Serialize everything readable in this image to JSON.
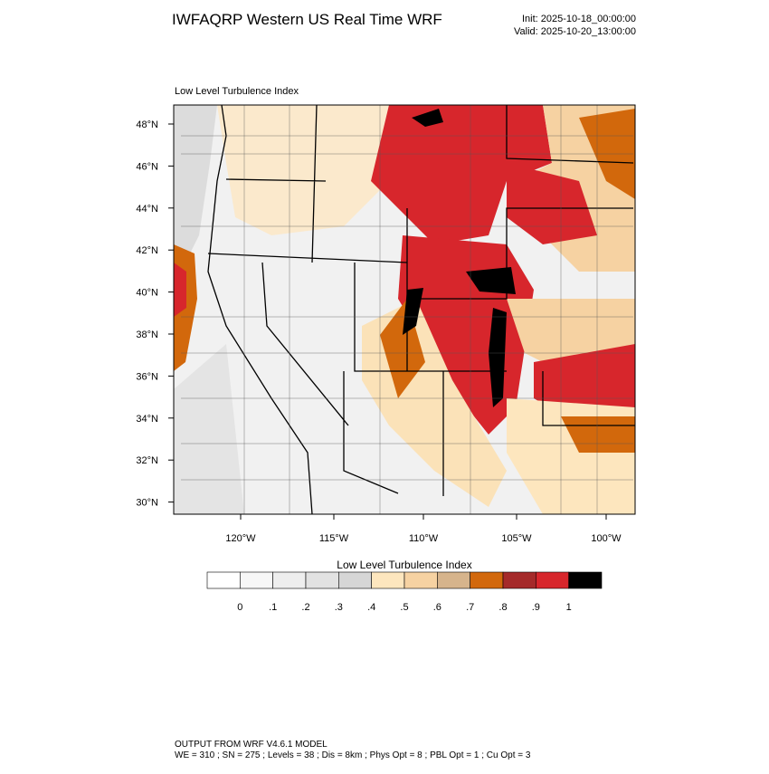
{
  "header": {
    "title": "IWFAQRP Western US Real Time WRF",
    "init": "Init: 2025-10-18_00:00:00",
    "valid": "Valid: 2025-10-20_13:00:00"
  },
  "map": {
    "subtitle": "Low Level Turbulence Index",
    "lat_labels": [
      "48°N",
      "46°N",
      "44°N",
      "42°N",
      "40°N",
      "38°N",
      "36°N",
      "34°N",
      "32°N",
      "30°N"
    ],
    "lon_labels": [
      "120°W",
      "115°W",
      "110°W",
      "105°W",
      "100°W"
    ]
  },
  "colorbar": {
    "title": "Low Level Turbulence Index",
    "colors": [
      "#ffffff",
      "#f7f7f7",
      "#eeeeee",
      "#e2e2e2",
      "#d6d6d6",
      "#fde6be",
      "#f6d2a2",
      "#d6b48c",
      "#d2680c",
      "#a52a2a",
      "#d7262c",
      "#000000"
    ],
    "tick_labels": [
      "0",
      ".1",
      ".2",
      ".3",
      ".4",
      ".5",
      ".6",
      ".7",
      ".8",
      ".9",
      "1"
    ]
  },
  "footer": {
    "line1": "OUTPUT FROM WRF V4.6.1 MODEL",
    "line2": "WE = 310 ; SN = 275 ; Levels = 38 ; Dis = 8km ; Phys Opt = 8 ; PBL Opt = 1 ; Cu Opt = 3"
  }
}
